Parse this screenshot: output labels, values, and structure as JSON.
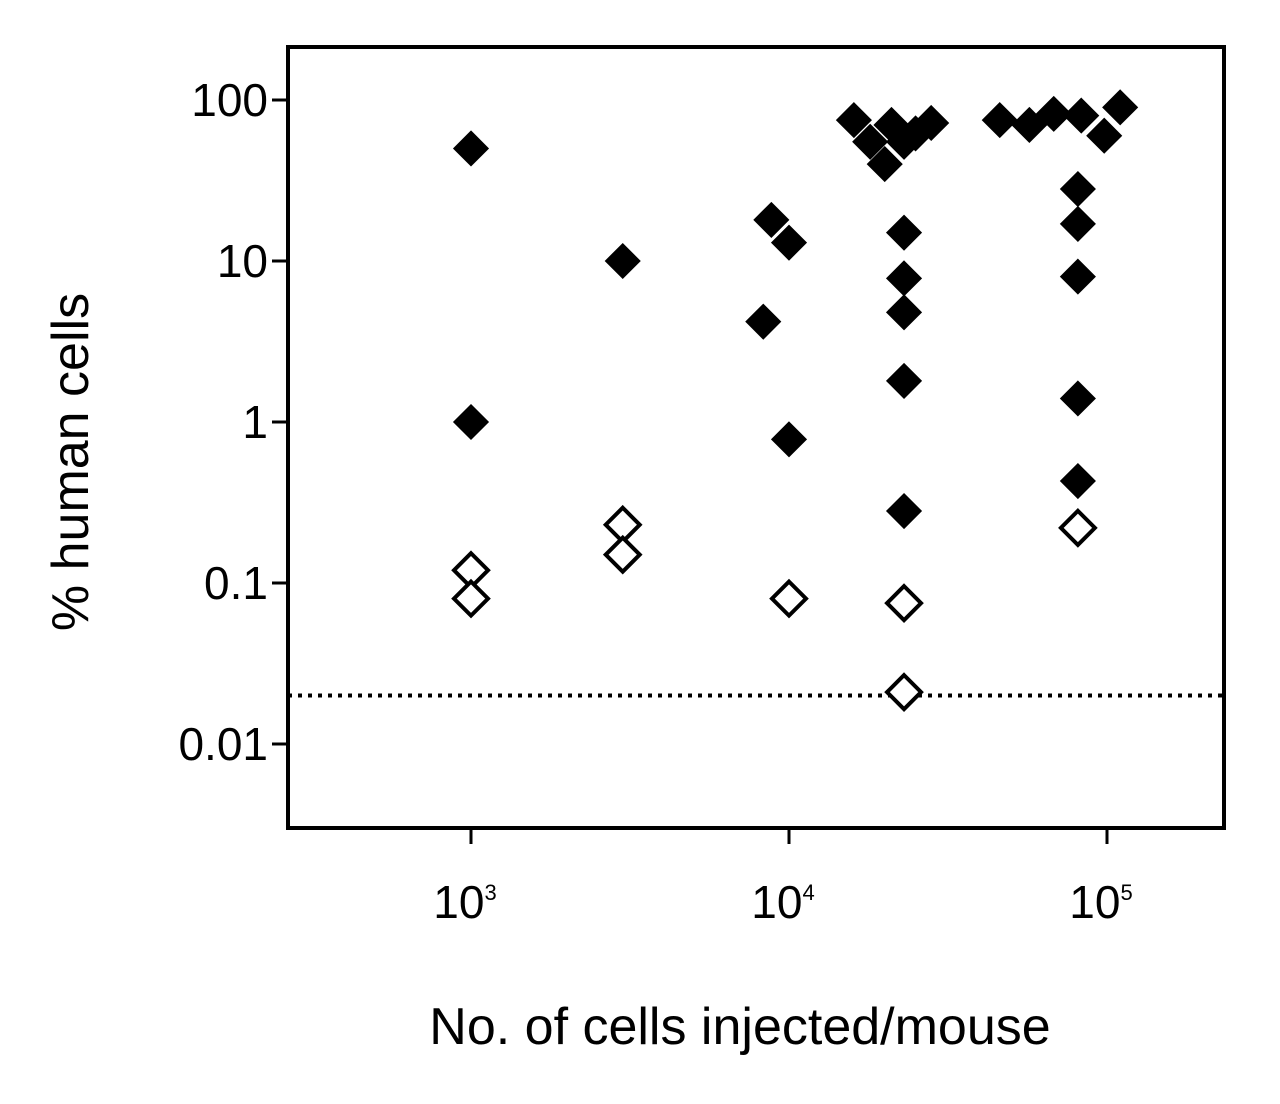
{
  "chart_data": {
    "type": "scatter",
    "title": "",
    "xlabel": "No. of cells injected/mouse",
    "ylabel": "% human cells",
    "x_scale": "log",
    "y_scale": "log",
    "xlim": [
      300,
      200000
    ],
    "ylim": [
      0.003,
      180
    ],
    "grid": false,
    "legend": "none",
    "x_ticks": [
      {
        "value": 1000,
        "base": "10",
        "exp": "3"
      },
      {
        "value": 10000,
        "base": "10",
        "exp": "4"
      },
      {
        "value": 100000,
        "base": "10",
        "exp": "5"
      }
    ],
    "y_ticks": [
      {
        "value": 100,
        "label": "100"
      },
      {
        "value": 10,
        "label": "10"
      },
      {
        "value": 1,
        "label": "1"
      },
      {
        "value": 0.1,
        "label": "0.1"
      },
      {
        "value": 0.01,
        "label": "0.01"
      }
    ],
    "detection_limit": 0.02,
    "series": [
      {
        "marker": "filled-diamond",
        "color": "#000000",
        "points": [
          {
            "x": 1000,
            "y": 50
          },
          {
            "x": 1000,
            "y": 1.0
          },
          {
            "x": 3000,
            "y": 10
          },
          {
            "x": 8300,
            "y": 4.2
          },
          {
            "x": 8800,
            "y": 18
          },
          {
            "x": 10000,
            "y": 13
          },
          {
            "x": 10000,
            "y": 0.78
          },
          {
            "x": 16000,
            "y": 75
          },
          {
            "x": 18000,
            "y": 55
          },
          {
            "x": 20000,
            "y": 40
          },
          {
            "x": 21000,
            "y": 70
          },
          {
            "x": 23000,
            "y": 55
          },
          {
            "x": 25000,
            "y": 62
          },
          {
            "x": 28000,
            "y": 72
          },
          {
            "x": 23000,
            "y": 15
          },
          {
            "x": 23000,
            "y": 7.8
          },
          {
            "x": 23000,
            "y": 4.8
          },
          {
            "x": 23000,
            "y": 1.8
          },
          {
            "x": 23000,
            "y": 0.28
          },
          {
            "x": 46000,
            "y": 75
          },
          {
            "x": 57000,
            "y": 70
          },
          {
            "x": 68000,
            "y": 82
          },
          {
            "x": 83000,
            "y": 80
          },
          {
            "x": 98000,
            "y": 60
          },
          {
            "x": 110000,
            "y": 90
          },
          {
            "x": 81000,
            "y": 28
          },
          {
            "x": 81000,
            "y": 17
          },
          {
            "x": 81000,
            "y": 8.0
          },
          {
            "x": 81000,
            "y": 1.4
          },
          {
            "x": 81000,
            "y": 0.43
          }
        ]
      },
      {
        "marker": "open-diamond",
        "color": "#000000",
        "points": [
          {
            "x": 1000,
            "y": 0.12
          },
          {
            "x": 1000,
            "y": 0.08
          },
          {
            "x": 3000,
            "y": 0.23
          },
          {
            "x": 3000,
            "y": 0.15
          },
          {
            "x": 10000,
            "y": 0.08
          },
          {
            "x": 23000,
            "y": 0.075
          },
          {
            "x": 23000,
            "y": 0.021
          },
          {
            "x": 81000,
            "y": 0.22
          }
        ]
      }
    ]
  }
}
